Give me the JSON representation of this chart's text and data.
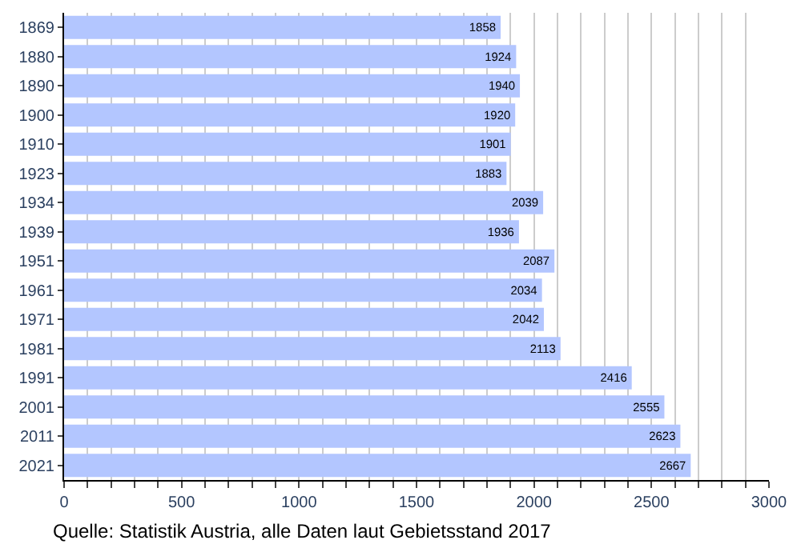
{
  "chart_data": {
    "type": "bar",
    "orientation": "horizontal",
    "categories": [
      "1869",
      "1880",
      "1890",
      "1900",
      "1910",
      "1923",
      "1934",
      "1939",
      "1951",
      "1961",
      "1971",
      "1981",
      "1991",
      "2001",
      "2011",
      "2021"
    ],
    "values": [
      1858,
      1924,
      1940,
      1920,
      1901,
      1883,
      2039,
      1936,
      2087,
      2034,
      2042,
      2113,
      2416,
      2555,
      2623,
      2667
    ],
    "color": "#b3c6ff",
    "data_labels": true,
    "xlim": [
      0,
      3000
    ],
    "xticks": [
      0,
      {
        "value": 100,
        "label": null
      },
      {
        "value": 200,
        "label": null
      },
      {
        "value": 300,
        "label": null
      },
      {
        "value": 400,
        "label": null
      },
      500,
      {
        "value": 600,
        "label": null
      },
      {
        "value": 700,
        "label": null
      },
      {
        "value": 800,
        "label": null
      },
      {
        "value": 900,
        "label": null
      },
      1000,
      {
        "value": 1100,
        "label": null
      },
      {
        "value": 1200,
        "label": null
      },
      {
        "value": 1300,
        "label": null
      },
      {
        "value": 1400,
        "label": null
      },
      1500,
      {
        "value": 1600,
        "label": null
      },
      {
        "value": 1700,
        "label": null
      },
      {
        "value": 1800,
        "label": null
      },
      {
        "value": 1900,
        "label": null
      },
      2000,
      {
        "value": 2100,
        "label": null
      },
      {
        "value": 2200,
        "label": null
      },
      {
        "value": 2300,
        "label": null
      },
      {
        "value": 2400,
        "label": null
      },
      2500,
      {
        "value": 2600,
        "label": null
      },
      {
        "value": 2700,
        "label": null
      },
      {
        "value": 2800,
        "label": null
      },
      {
        "value": 2900,
        "label": null
      },
      3000
    ],
    "grid": "x",
    "annotations": [
      "Quelle: Statistik Austria, alle Daten laut Gebietsstand 2017"
    ]
  }
}
